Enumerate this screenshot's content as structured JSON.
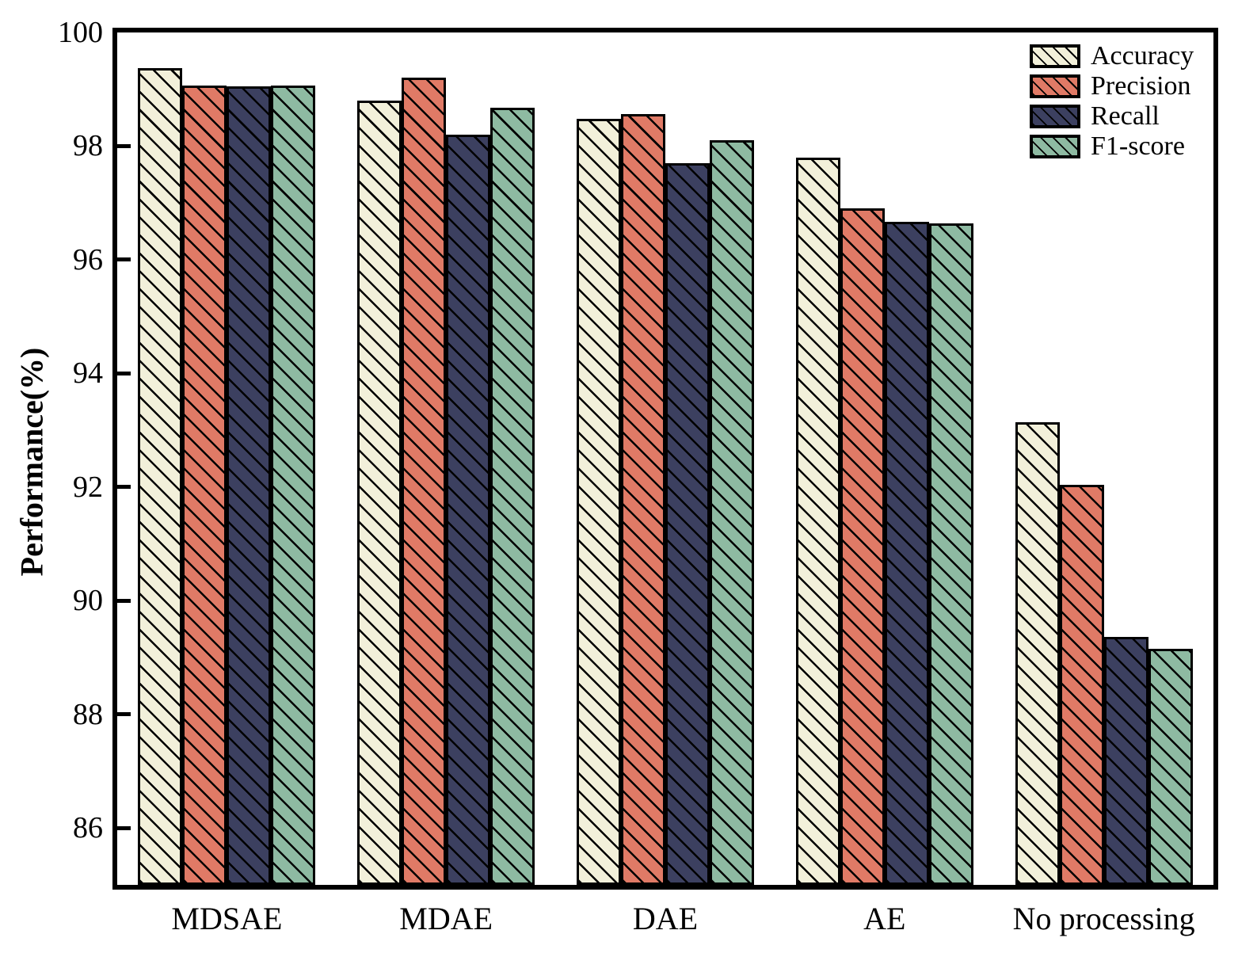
{
  "chart_data": {
    "type": "bar",
    "title": "",
    "categories": [
      "MDSAE",
      "MDAE",
      "DAE",
      "AE",
      "No processing"
    ],
    "series": [
      {
        "name": "Accuracy",
        "color": "#F2F0DA",
        "values": [
          99.38,
          98.8,
          98.48,
          97.8,
          93.14
        ]
      },
      {
        "name": "Precision",
        "color": "#E07A66",
        "values": [
          99.07,
          99.21,
          98.56,
          96.9,
          92.04
        ]
      },
      {
        "name": "Recall",
        "color": "#3C4060",
        "values": [
          99.05,
          98.2,
          97.7,
          96.67,
          89.36
        ]
      },
      {
        "name": "F1-score",
        "color": "#8EBAA2",
        "values": [
          99.06,
          98.68,
          98.1,
          96.64,
          89.15
        ]
      }
    ],
    "xlabel": "",
    "ylabel": "Performance(%)",
    "ylim": [
      85,
      100
    ],
    "yticks": [
      86,
      88,
      90,
      92,
      94,
      96,
      98,
      100
    ],
    "legend": {
      "position": "top-right",
      "entries": [
        "Accuracy",
        "Precision",
        "Recall",
        "F1-score"
      ]
    },
    "grid": false,
    "hatch": "\\",
    "bar_edge_color": "#000000",
    "axis_color": "#000000"
  }
}
